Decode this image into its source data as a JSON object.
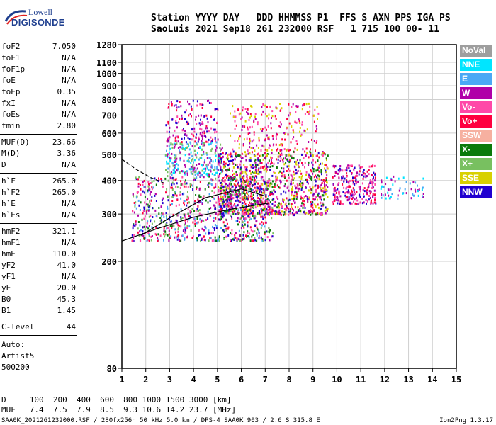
{
  "logo": {
    "line1": "Lowell",
    "line2": "DIGISONDE"
  },
  "header": {
    "row1": "Station YYYY DAY   DDD HHMMSS P1  FFS S AXN PPS IGA PS",
    "row2": "SaoLuis 2021 Sep18 261 232000 RSF   1 715 100 00- 11"
  },
  "params_group1": [
    {
      "k": "foF2",
      "v": "7.050"
    },
    {
      "k": "foF1",
      "v": "N/A"
    },
    {
      "k": "foF1p",
      "v": "N/A"
    },
    {
      "k": "foE",
      "v": "N/A"
    },
    {
      "k": "foEp",
      "v": "0.35"
    },
    {
      "k": "fxI",
      "v": "N/A"
    },
    {
      "k": "foEs",
      "v": "N/A"
    },
    {
      "k": "fmin",
      "v": "2.80"
    }
  ],
  "params_group2": [
    {
      "k": "MUF(D)",
      "v": "23.66"
    },
    {
      "k": "M(D)",
      "v": "3.36"
    },
    {
      "k": "D",
      "v": "N/A"
    }
  ],
  "params_group3": [
    {
      "k": "h`F",
      "v": "265.0"
    },
    {
      "k": "h`F2",
      "v": "265.0"
    },
    {
      "k": "h`E",
      "v": "N/A"
    },
    {
      "k": "h`Es",
      "v": "N/A"
    }
  ],
  "params_group4": [
    {
      "k": "hmF2",
      "v": "321.1"
    },
    {
      "k": "hmF1",
      "v": "N/A"
    },
    {
      "k": "hmE",
      "v": "110.0"
    },
    {
      "k": "yF2",
      "v": "41.0"
    },
    {
      "k": "yF1",
      "v": "N/A"
    },
    {
      "k": "yE",
      "v": "20.0"
    },
    {
      "k": "B0",
      "v": "45.3"
    },
    {
      "k": "B1",
      "v": "1.45"
    }
  ],
  "params_group5": [
    {
      "k": "C-level",
      "v": "44"
    }
  ],
  "auto": {
    "line1": "Auto:",
    "line2": "Artist5",
    "line3": "500200"
  },
  "legend": [
    {
      "label": "NoVal",
      "color": "#9e9e9e",
      "text": "#ffffff"
    },
    {
      "label": "NNE",
      "color": "#00e5ff",
      "text": "#ffffff"
    },
    {
      "label": "E",
      "color": "#4aa8f5",
      "text": "#ffffff"
    },
    {
      "label": "W",
      "color": "#b000a8",
      "text": "#ffffff"
    },
    {
      "label": "Vo-",
      "color": "#ff48a8",
      "text": "#ffffff"
    },
    {
      "label": "Vo+",
      "color": "#ff0040",
      "text": "#ffffff"
    },
    {
      "label": "SSW",
      "color": "#f6b0a0",
      "text": "#ffffff"
    },
    {
      "label": "X-",
      "color": "#0a7a0a",
      "text": "#ffffff"
    },
    {
      "label": "X+",
      "color": "#78c060",
      "text": "#ffffff"
    },
    {
      "label": "SSE",
      "color": "#d8d000",
      "text": "#ffffff"
    },
    {
      "label": "NNW",
      "color": "#2000d0",
      "text": "#ffffff"
    }
  ],
  "dmuf": {
    "d_row": "D     100  200  400  600  800 1000 1500 3000 [km]",
    "muf_row": "MUF   7.4  7.5  7.9  8.5  9.3 10.6 14.2 23.7 [MHz]"
  },
  "footer": {
    "left": "SAA0K_2021261232000.RSF / 280fx256h 50 kHz 5.0 km / DPS-4 SAA0K 903 / 2.6 S 315.8 E",
    "right": "Ion2Png 1.3.17"
  },
  "chart_data": {
    "type": "scatter",
    "title": "",
    "xlabel": "",
    "ylabel": "",
    "x_ticks": [
      1,
      2,
      3,
      4,
      5,
      6,
      7,
      8,
      9,
      10,
      11,
      12,
      13,
      14,
      15
    ],
    "y_ticks": [
      80,
      200,
      300,
      400,
      500,
      600,
      700,
      800,
      900,
      1000,
      1100,
      1280
    ],
    "xlim": [
      1,
      15
    ],
    "ylim": [
      80,
      1280
    ],
    "y_scale": "log",
    "grid": true,
    "clusters": [
      {
        "x_range": [
          1.4,
          7.3
        ],
        "y_range": [
          240,
          420
        ],
        "density": 900,
        "colors": [
          "#ff0040",
          "#ff48a8",
          "#b000a8",
          "#2000d0",
          "#0a7a0a",
          "#78c060",
          "#4aa8f5"
        ]
      },
      {
        "x_range": [
          2.8,
          5.2
        ],
        "y_range": [
          420,
          560
        ],
        "density": 260,
        "colors": [
          "#4aa8f5",
          "#00e5ff",
          "#78c060",
          "#b000a8"
        ]
      },
      {
        "x_range": [
          2.8,
          5.0
        ],
        "y_range": [
          560,
          800
        ],
        "density": 160,
        "colors": [
          "#b000a8",
          "#ff0040",
          "#ff48a8",
          "#2000d0"
        ]
      },
      {
        "x_range": [
          5.0,
          9.6
        ],
        "y_range": [
          300,
          520
        ],
        "density": 1100,
        "colors": [
          "#ff0040",
          "#b000a8",
          "#ff48a8",
          "#2000d0",
          "#0a7a0a",
          "#d8d000"
        ]
      },
      {
        "x_range": [
          5.5,
          9.2
        ],
        "y_range": [
          520,
          780
        ],
        "density": 220,
        "colors": [
          "#b000a8",
          "#ff0040",
          "#d8d000",
          "#ff48a8"
        ]
      },
      {
        "x_range": [
          9.8,
          11.6
        ],
        "y_range": [
          330,
          460
        ],
        "density": 260,
        "colors": [
          "#b000a8",
          "#ff0040",
          "#ff48a8",
          "#2000d0"
        ]
      },
      {
        "x_range": [
          11.8,
          13.6
        ],
        "y_range": [
          345,
          420
        ],
        "density": 60,
        "colors": [
          "#00e5ff",
          "#4aa8f5",
          "#b000a8"
        ]
      }
    ],
    "trace_lines": [
      {
        "name": "",
        "style": "solid",
        "x": [
          1.0,
          2.5,
          4.0,
          5.5,
          7.2
        ],
        "y": [
          238,
          265,
          292,
          312,
          330
        ]
      },
      {
        "name": "",
        "style": "solid",
        "x": [
          1.8,
          3.0,
          4.5,
          6.0,
          7.0
        ],
        "y": [
          250,
          290,
          345,
          372,
          350
        ]
      },
      {
        "name": "",
        "style": "dashed",
        "x": [
          1.0,
          1.6,
          2.2,
          2.8
        ],
        "y": [
          480,
          440,
          410,
          390
        ]
      }
    ]
  }
}
